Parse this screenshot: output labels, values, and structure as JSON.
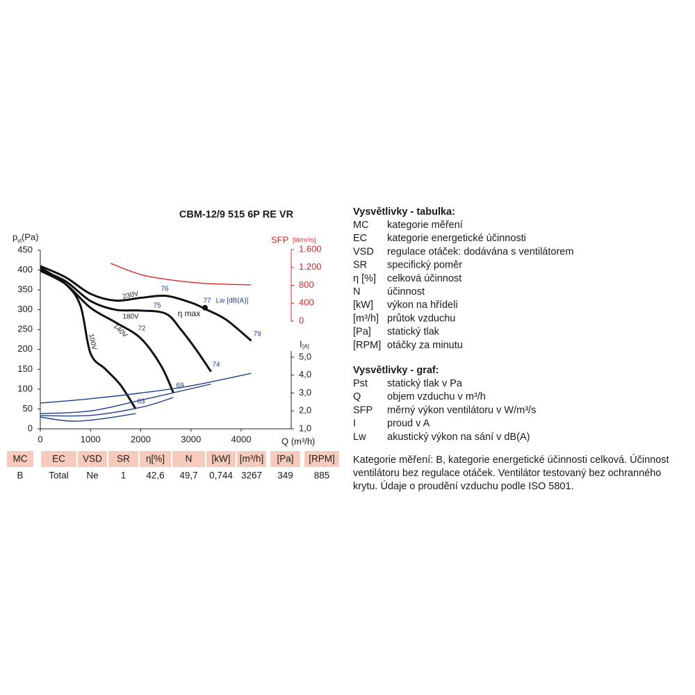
{
  "chart_data": {
    "type": "line",
    "title": "CBM-12/9 515 6P RE VR",
    "xlabel": "Q (m³/h)",
    "ylabel": "p",
    "ylabel_sub": "st",
    "ylabel_unit": "(Pa)",
    "y2label": "SFP",
    "y2label_unit": "[W/m³/s]",
    "y3label": "I",
    "y3label_unit": "[A]",
    "xlim": [
      0,
      5000
    ],
    "xticks": [
      0,
      1000,
      2000,
      3000,
      4000
    ],
    "ylim": [
      0,
      450
    ],
    "yticks": [
      0,
      50,
      100,
      150,
      200,
      250,
      300,
      350,
      400,
      450
    ],
    "y2lim": [
      0,
      1600
    ],
    "y2ticks": [
      0,
      400,
      800,
      {
        "value": 1200,
        "label": "1.200"
      },
      {
        "value": 1600,
        "label": "1.600"
      }
    ],
    "y3lim": [
      1,
      5
    ],
    "y3ticks": [
      {
        "value": 1,
        "label": "1,0"
      },
      {
        "value": 2,
        "label": "2,0"
      },
      {
        "value": 3,
        "label": "3,0"
      },
      {
        "value": 4,
        "label": "4,0"
      },
      {
        "value": 5,
        "label": "5,0"
      }
    ],
    "series": [
      {
        "name": "230V",
        "color": "#111111",
        "x": [
          0,
          500,
          1000,
          1500,
          2000,
          2500,
          3000,
          3300,
          3700,
          4200
        ],
        "values": [
          410,
          382,
          340,
          323,
          330,
          335,
          318,
          301,
          275,
          222
        ]
      },
      {
        "name": "180V",
        "color": "#111111",
        "x": [
          0,
          500,
          1000,
          1500,
          2000,
          2500,
          2800,
          3100,
          3400
        ],
        "values": [
          400,
          372,
          322,
          300,
          298,
          290,
          250,
          200,
          144
        ]
      },
      {
        "name": "140V",
        "color": "#111111",
        "x": [
          0,
          500,
          1000,
          1500,
          2000,
          2400,
          2650
        ],
        "values": [
          398,
          365,
          305,
          268,
          228,
          160,
          91
        ]
      },
      {
        "name": "100V",
        "color": "#111111",
        "x": [
          0,
          500,
          800,
          1000,
          1300,
          1600,
          1900
        ],
        "values": [
          406,
          365,
          310,
          190,
          150,
          110,
          50
        ]
      },
      {
        "color": "#d9262c",
        "axis": "y2",
        "x": [
          1400,
          2000,
          2600,
          3300,
          4200
        ],
        "values": [
          1290,
          1040,
          920,
          840,
          810
        ]
      },
      {
        "color": "#1f3d8a",
        "axis": "y3",
        "x": [
          0,
          1000,
          2000,
          3000,
          4200
        ],
        "values": [
          2.44,
          2.68,
          3.0,
          3.4,
          4.1
        ]
      },
      {
        "color": "#1f3d8a",
        "axis": "y3",
        "x": [
          0,
          1000,
          2000,
          3400
        ],
        "values": [
          1.85,
          2.0,
          2.6,
          3.5
        ]
      },
      {
        "color": "#1f3d8a",
        "axis": "y3",
        "x": [
          0,
          1000,
          2000,
          2650
        ],
        "values": [
          1.74,
          1.75,
          2.2,
          2.75
        ]
      },
      {
        "color": "#1f3d8a",
        "axis": "y3",
        "x": [
          0,
          600,
          1200,
          1900
        ],
        "values": [
          1.66,
          1.43,
          1.55,
          1.85
        ]
      }
    ],
    "point": {
      "x": 3280,
      "y": 305
    },
    "annotations": [
      "76",
      "75",
      "η max",
      "72",
      "77",
      "Lw [dB(A)]",
      "79",
      "74",
      "69",
      "63"
    ]
  },
  "table": {
    "header": [
      "MC",
      "EC",
      "VSD",
      "SR",
      "η[%]",
      "N",
      "[kW]",
      "[m³/h]",
      "[Pa]",
      "[RPM]"
    ],
    "rows": [
      [
        "B",
        "Total",
        "Ne",
        "1",
        "42,6",
        "49,7",
        "0,744",
        "3267",
        "349",
        "885"
      ]
    ]
  },
  "legend_table": {
    "title": "Vysvětlivky - tabulka:",
    "items": [
      [
        "MC",
        "kategorie měření"
      ],
      [
        "EC",
        "kategorie energetické účinnosti"
      ],
      [
        "VSD",
        "regulace otáček: dodávána s ventilátorem"
      ],
      [
        "SR",
        "specifický poměr"
      ],
      [
        "η [%]",
        "celková účinnost"
      ],
      [
        "N",
        "účinnost"
      ],
      [
        "[kW]",
        "výkon na hřídeli"
      ],
      [
        "[m³/h]",
        "průtok vzduchu"
      ],
      [
        "[Pa]",
        "statický tlak"
      ],
      [
        "[RPM]",
        "otáčky za minutu"
      ]
    ]
  },
  "legend_graph": {
    "title": "Vysvětlivky - graf:",
    "items": [
      [
        "Pst",
        "statický tlak v Pa"
      ],
      [
        "Q",
        "objem vzduchu v m³/h"
      ],
      [
        "SFP",
        "měrný výkon ventilátoru v W/m³/s"
      ],
      [
        "I",
        "proud v A"
      ],
      [
        "Lw",
        "akustický výkon na sání v dB(A)"
      ]
    ]
  },
  "note": [
    "Kategorie měření: B, kategorie energetické účinnosti celková. Účinnost",
    "ventilátoru bez regulace otáček. Ventilátor testovaný bez ochranného",
    "krytu. Údaje o proudění vzduchu podle ISO 5801."
  ]
}
